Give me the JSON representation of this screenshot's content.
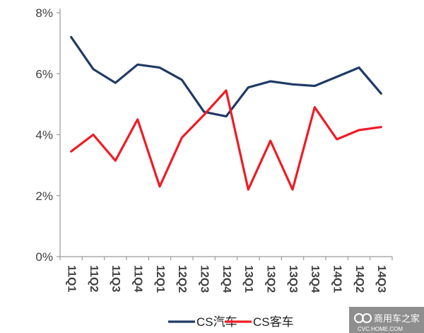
{
  "chart_data": {
    "type": "line",
    "categories": [
      "11Q1",
      "11Q2",
      "11Q3",
      "11Q4",
      "12Q1",
      "12Q2",
      "12Q3",
      "12Q4",
      "13Q1",
      "13Q2",
      "13Q3",
      "13Q4",
      "14Q1",
      "14Q2",
      "14Q3"
    ],
    "series": [
      {
        "name": "CS汽车",
        "color": "#1f3a66",
        "values": [
          7.2,
          6.15,
          5.7,
          6.3,
          6.2,
          5.8,
          4.75,
          4.6,
          5.55,
          5.75,
          5.65,
          5.6,
          5.9,
          6.2,
          5.35
        ]
      },
      {
        "name": "CS客车",
        "color": "#ee1c25",
        "values": [
          3.45,
          4.0,
          3.15,
          4.5,
          2.3,
          3.9,
          4.65,
          5.45,
          2.2,
          3.8,
          2.2,
          4.9,
          3.85,
          4.15,
          4.25
        ]
      }
    ],
    "yticks": [
      "0%",
      "2%",
      "4%",
      "6%",
      "8%"
    ],
    "ylim": [
      0,
      8
    ],
    "grid": false,
    "legend": "bottom-center"
  },
  "watermark": {
    "text": "商用车之家",
    "subtext": "CVC.HOME.COM"
  }
}
